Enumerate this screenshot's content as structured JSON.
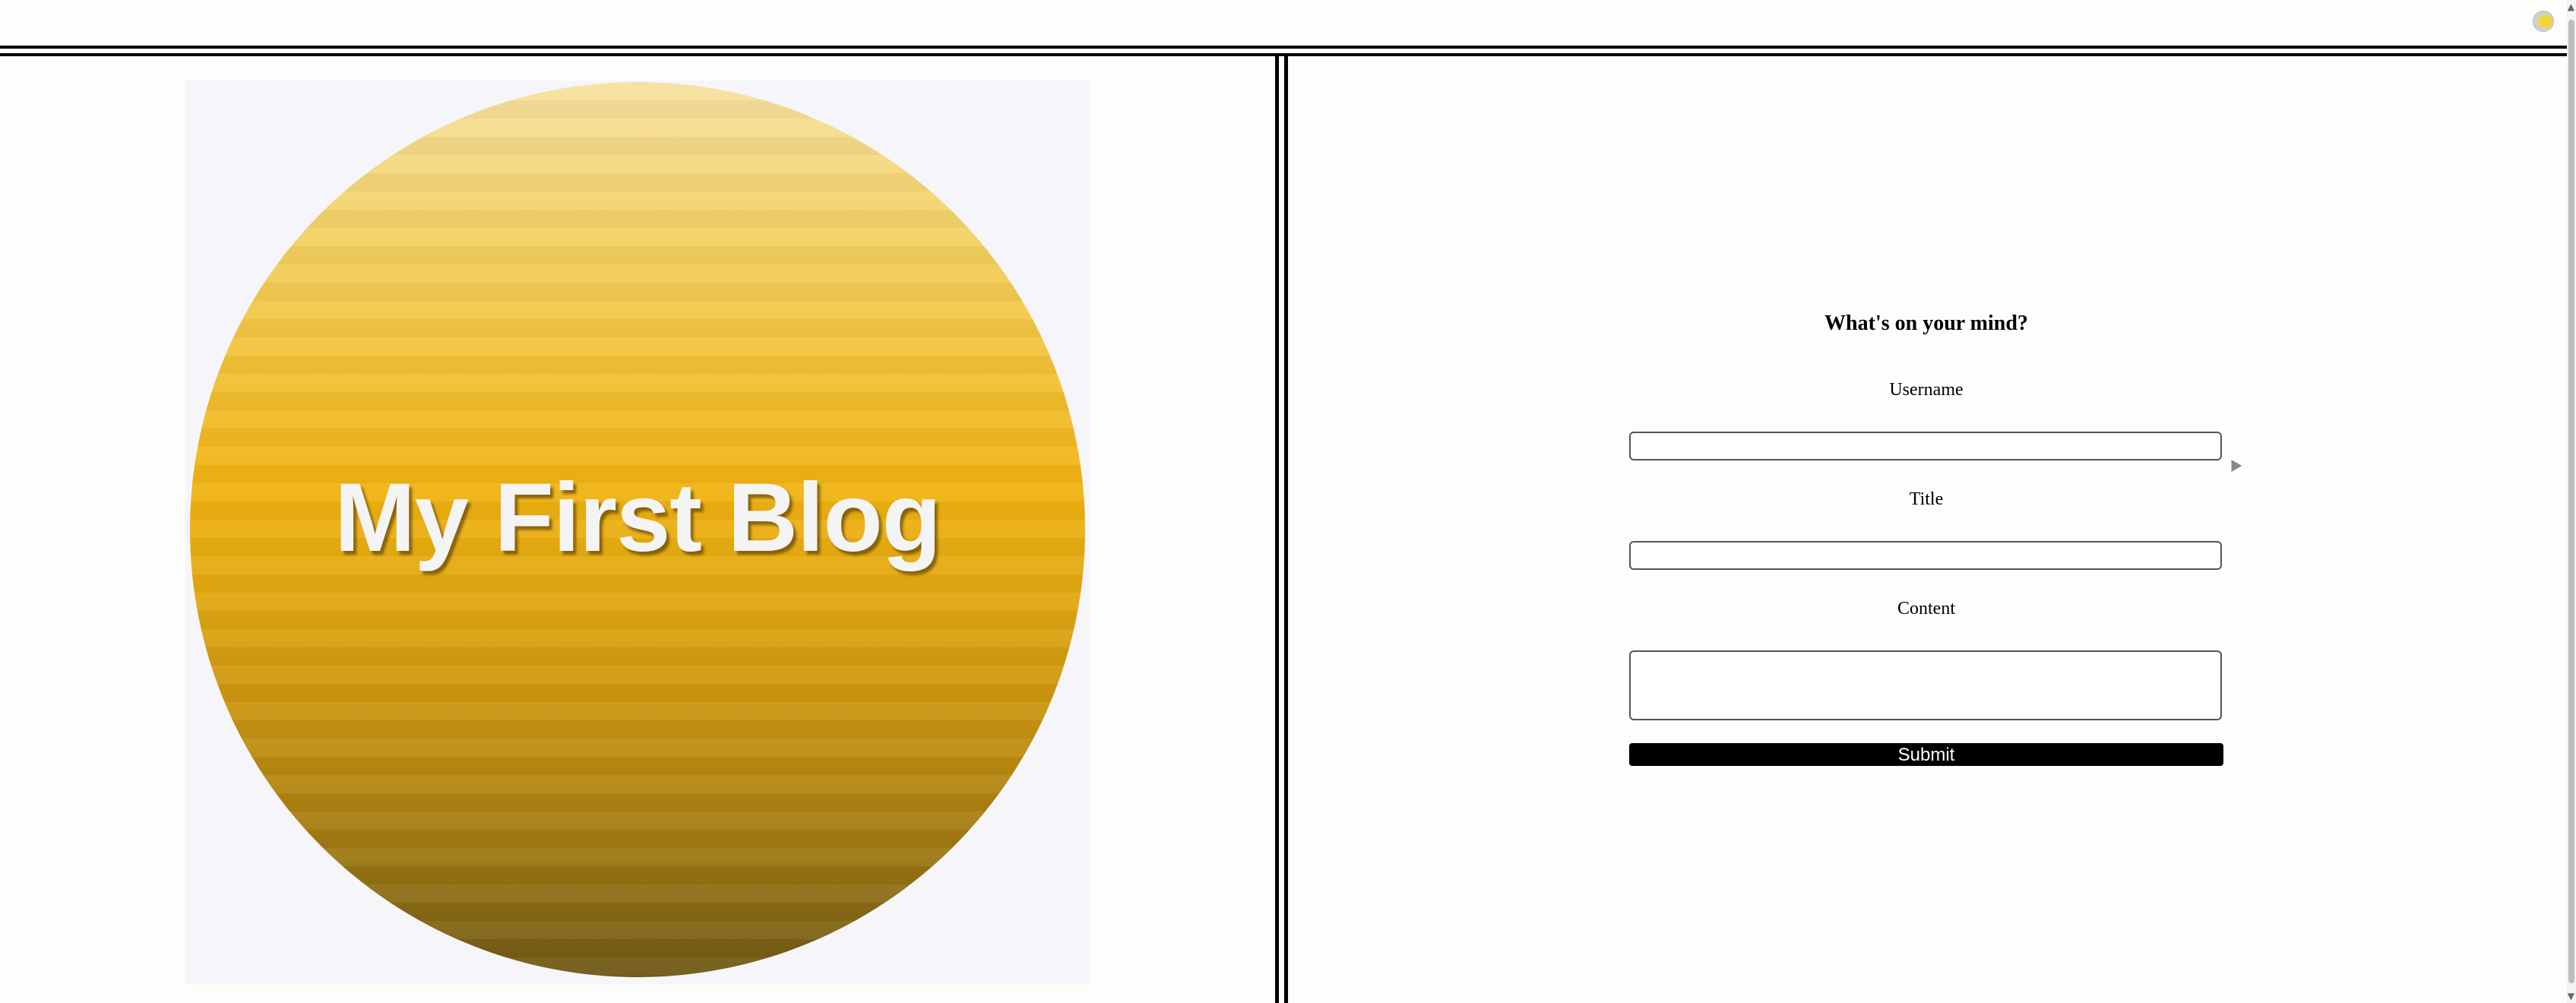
{
  "header": {
    "extension_icon": "browser-extension-icon"
  },
  "logo": {
    "text": "My First Blog",
    "gradient_top": "#f6e1a0",
    "gradient_mid": "#f0b312",
    "gradient_bottom": "#6e5817"
  },
  "form": {
    "heading": "What's on your mind?",
    "username_label": "Username",
    "username_value": "",
    "title_label": "Title",
    "title_value": "",
    "content_label": "Content",
    "content_value": "",
    "submit_label": "Submit"
  },
  "colors": {
    "background": "#fdfdfb",
    "rule": "#000000",
    "submit_bg": "#000000",
    "submit_text": "#ffffff"
  },
  "icons": {
    "cursor": "mouse-pointer-icon",
    "scroll_up": "scroll-up-arrow-icon",
    "scroll_down": "scroll-down-arrow-icon"
  }
}
